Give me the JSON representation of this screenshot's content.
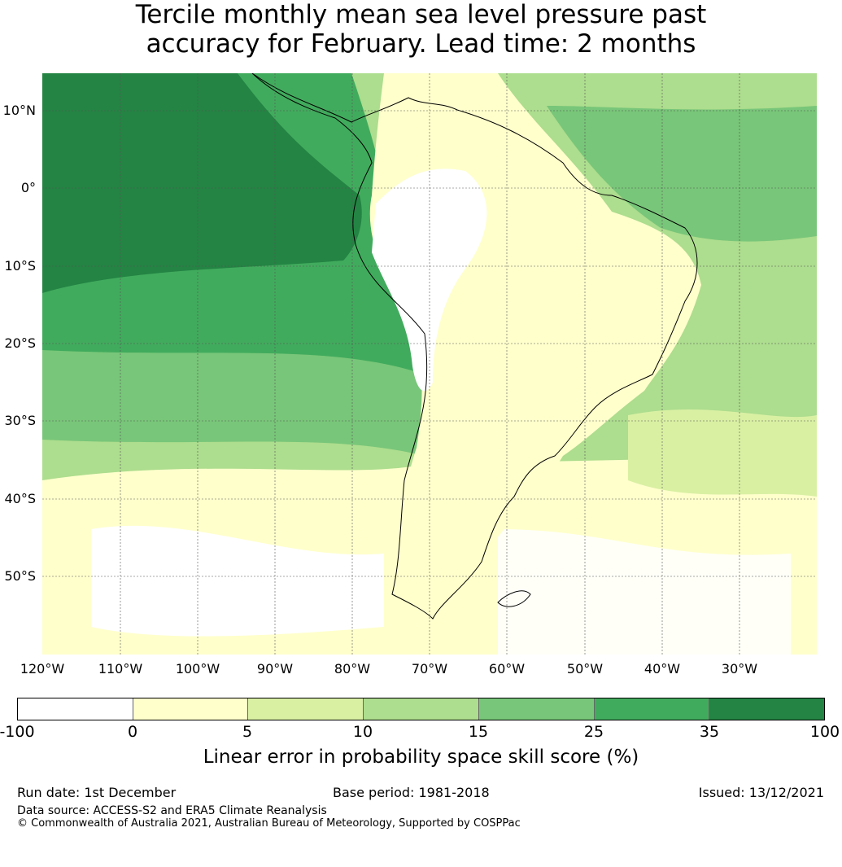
{
  "title": {
    "line1": "Tercile monthly mean sea level pressure past",
    "line2": "accuracy for February. Lead time: 2 months"
  },
  "map": {
    "lat_labels": [
      "10°N",
      "0°",
      "10°S",
      "20°S",
      "30°S",
      "40°S",
      "50°S"
    ],
    "lon_labels": [
      "120°W",
      "110°W",
      "100°W",
      "90°W",
      "80°W",
      "70°W",
      "60°W",
      "50°W",
      "40°W",
      "30°W"
    ]
  },
  "colorbar": {
    "ticks": [
      "-100",
      "0",
      "5",
      "10",
      "15",
      "25",
      "35",
      "100"
    ],
    "colors": [
      "#ffffff",
      "#ffffcc",
      "#d9f0a3",
      "#addd8e",
      "#78c679",
      "#41ab5d",
      "#238443"
    ],
    "label": "Linear error in probability space skill score (%)"
  },
  "footer": {
    "run_date": "Run date: 1st December",
    "base_period": "Base period: 1981-2018",
    "issued": "Issued: 13/12/2021",
    "data_source": "Data source: ACCESS-S2 and ERA5 Climate Reanalysis",
    "copyright": "© Commonwealth of Australia 2021, Australian Bureau of Meteorology, Supported by COSPPac"
  }
}
